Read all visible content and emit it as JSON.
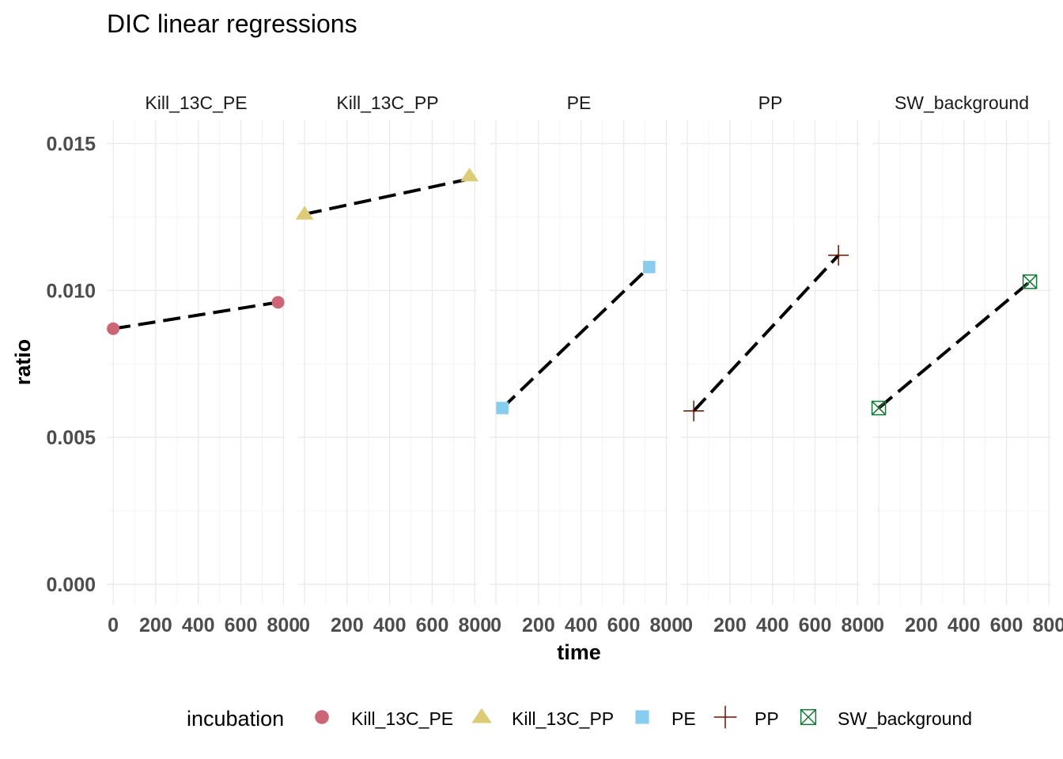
{
  "chart_data": {
    "type": "scatter",
    "title": "DIC linear regressions",
    "xlabel": "time",
    "ylabel": "ratio",
    "xlim": [
      -30,
      810
    ],
    "ylim": [
      -0.0007,
      0.0158
    ],
    "x_ticks": [
      0,
      200,
      400,
      600,
      800
    ],
    "y_ticks": [
      0.0,
      0.005,
      0.01,
      0.015
    ],
    "y_tick_labels": [
      "0.000",
      "0.005",
      "0.010",
      "0.015"
    ],
    "grid": true,
    "legend": {
      "position": "bottom",
      "title": "incubation",
      "entries": [
        "Kill_13C_PE",
        "Kill_13C_PP",
        "PE",
        "PP",
        "SW_background"
      ]
    },
    "facets": [
      {
        "label": "Kill_13C_PE",
        "shape": "circle",
        "color": "#CC6677",
        "points": [
          {
            "x": 0,
            "y": 0.0087
          },
          {
            "x": 775,
            "y": 0.0096
          }
        ],
        "fit": [
          [
            0,
            0.0087
          ],
          [
            775,
            0.0096
          ]
        ]
      },
      {
        "label": "Kill_13C_PP",
        "shape": "triangle",
        "color": "#DDCC77",
        "points": [
          {
            "x": 0,
            "y": 0.0126
          },
          {
            "x": 775,
            "y": 0.0139
          }
        ],
        "fit": [
          [
            0,
            0.0126
          ],
          [
            775,
            0.0138
          ]
        ]
      },
      {
        "label": "PE",
        "shape": "square",
        "color": "#88CCEE",
        "points": [
          {
            "x": 30,
            "y": 0.006
          },
          {
            "x": 720,
            "y": 0.0108
          }
        ],
        "fit": [
          [
            30,
            0.006
          ],
          [
            720,
            0.0108
          ]
        ]
      },
      {
        "label": "PP",
        "shape": "plus",
        "color": "#661100",
        "points": [
          {
            "x": 30,
            "y": 0.0059
          },
          {
            "x": 710,
            "y": 0.0112
          }
        ],
        "fit": [
          [
            30,
            0.0059
          ],
          [
            710,
            0.0112
          ]
        ]
      },
      {
        "label": "SW_background",
        "shape": "boxcross",
        "color": "#117733",
        "points": [
          {
            "x": 0,
            "y": 0.006
          },
          {
            "x": 710,
            "y": 0.0103
          }
        ],
        "fit": [
          [
            0,
            0.006
          ],
          [
            710,
            0.0103
          ]
        ]
      }
    ]
  }
}
